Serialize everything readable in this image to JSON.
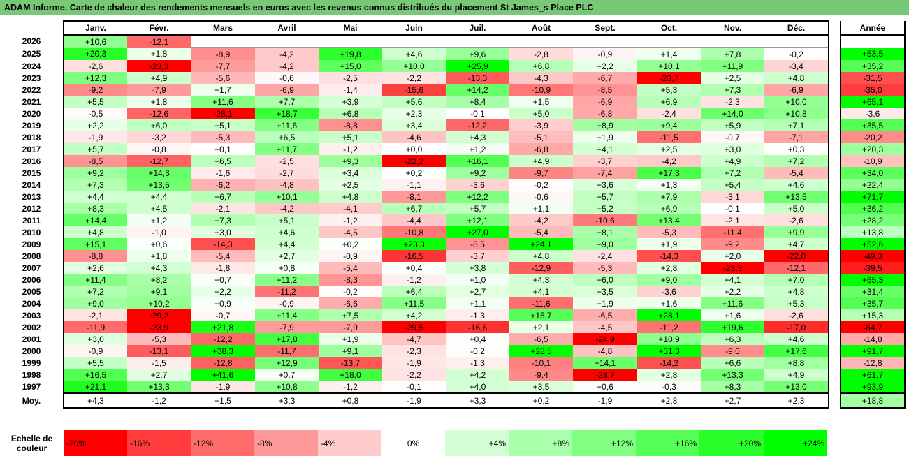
{
  "title": "ADAM Informe. Carte de chaleur des rendements mensuels en euros avec les revenus connus distribués du placement St James_s Place PLC",
  "chart_data": {
    "type": "heatmap",
    "columns": [
      "Janv.",
      "Févr.",
      "Mars",
      "Avril",
      "Mai",
      "Juin",
      "Juil.",
      "Août",
      "Sept.",
      "Oct.",
      "Nov.",
      "Déc."
    ],
    "annual_header": "Année",
    "rows": [
      {
        "year": "2026",
        "values": [
          "+10,6",
          "-12,1",
          "",
          "",
          "",
          "",
          "",
          "",
          "",
          "",
          "",
          ""
        ],
        "annual": ""
      },
      {
        "year": "2025",
        "values": [
          "+20,3",
          "+1,8",
          "-8,9",
          "-4,2",
          "+19,8",
          "+4,6",
          "+9,6",
          "-2,8",
          "-0,9",
          "+1,4",
          "+7,8",
          "-0,2"
        ],
        "annual": "+53,5"
      },
      {
        "year": "2024",
        "values": [
          "-2,6",
          "-23,3",
          "-7,7",
          "-4,2",
          "+15,0",
          "+10,0",
          "+25,9",
          "+6,8",
          "+2,2",
          "+10,1",
          "+11,9",
          "-3,4"
        ],
        "annual": "+35,2"
      },
      {
        "year": "2023",
        "values": [
          "+12,3",
          "+4,9",
          "-5,6",
          "-0,6",
          "-2,5",
          "-2,2",
          "-13,3",
          "-4,3",
          "-6,7",
          "-23,7",
          "+2,5",
          "+4,8"
        ],
        "annual": "-31,5"
      },
      {
        "year": "2022",
        "values": [
          "-9,2",
          "-7,9",
          "+1,7",
          "-6,9",
          "-1,4",
          "-15,6",
          "+14,2",
          "-10,9",
          "-8,5",
          "+5,3",
          "+7,3",
          "-6,9"
        ],
        "annual": "-35,0"
      },
      {
        "year": "2021",
        "values": [
          "+5,5",
          "+1,8",
          "+11,6",
          "+7,7",
          "+3,9",
          "+5,6",
          "+8,4",
          "+1,5",
          "-6,9",
          "+6,9",
          "-2,3",
          "+10,0"
        ],
        "annual": "+65,1"
      },
      {
        "year": "2020",
        "values": [
          "-0,5",
          "-12,6",
          "-28,1",
          "+18,7",
          "+6,8",
          "+2,3",
          "-0,1",
          "+5,0",
          "-6,8",
          "-2,4",
          "+14,0",
          "+10,8"
        ],
        "annual": "-3,6"
      },
      {
        "year": "2019",
        "values": [
          "+2,2",
          "+6,0",
          "+5,1",
          "+11,6",
          "-8,8",
          "+3,4",
          "-12,2",
          "-3,9",
          "+8,9",
          "+9,4",
          "+5,9",
          "+7,1"
        ],
        "annual": "+35,5"
      },
      {
        "year": "2018",
        "values": [
          "-1,9",
          "-3,2",
          "-5,3",
          "+6,5",
          "+5,1",
          "-4,6",
          "+4,3",
          "-5,1",
          "+1,9",
          "-11,5",
          "-0,7",
          "-7,1"
        ],
        "annual": "-20,2"
      },
      {
        "year": "2017",
        "values": [
          "+5,7",
          "-0,8",
          "+0,1",
          "+11,7",
          "-1,2",
          "+0,0",
          "+1,2",
          "-6,8",
          "+4,1",
          "+2,5",
          "+3,0",
          "+0,3"
        ],
        "annual": "+20,3"
      },
      {
        "year": "2016",
        "values": [
          "-8,5",
          "-12,7",
          "+6,5",
          "-2,5",
          "+9,3",
          "-22,2",
          "+16,1",
          "+4,9",
          "-3,7",
          "-4,2",
          "+4,9",
          "+7,2"
        ],
        "annual": "-10,9"
      },
      {
        "year": "2015",
        "values": [
          "+9,2",
          "+14,3",
          "-1,6",
          "-2,7",
          "+3,4",
          "+0,2",
          "+9,2",
          "-9,7",
          "-7,4",
          "+17,3",
          "+7,2",
          "-5,4"
        ],
        "annual": "+34,0"
      },
      {
        "year": "2014",
        "values": [
          "+7,3",
          "+13,5",
          "-6,2",
          "-4,8",
          "+2,5",
          "-1,1",
          "-3,6",
          "-0,2",
          "+3,6",
          "+1,3",
          "+5,4",
          "+4,6"
        ],
        "annual": "+22,4"
      },
      {
        "year": "2013",
        "values": [
          "+4,4",
          "+4,4",
          "+6,7",
          "+10,1",
          "+4,8",
          "-8,1",
          "+12,2",
          "-0,6",
          "+5,7",
          "+7,9",
          "-3,1",
          "+13,5"
        ],
        "annual": "+71,7"
      },
      {
        "year": "2012",
        "values": [
          "+8,3",
          "+4,5",
          "-2,1",
          "-4,2",
          "-4,1",
          "+6,7",
          "+5,7",
          "+1,1",
          "+5,2",
          "+6,9",
          "-0,1",
          "+5,0"
        ],
        "annual": "+36,2"
      },
      {
        "year": "2011",
        "values": [
          "+14,4",
          "+1,2",
          "+7,3",
          "+5,1",
          "-1,2",
          "-4,4",
          "+12,1",
          "-4,2",
          "-10,6",
          "+13,4",
          "-2,1",
          "-2,6"
        ],
        "annual": "+28,2"
      },
      {
        "year": "2010",
        "values": [
          "+4,8",
          "-1,0",
          "+3,0",
          "+4,6",
          "-4,5",
          "-10,8",
          "+27,0",
          "-5,4",
          "+8,1",
          "-5,3",
          "-11,4",
          "+9,9"
        ],
        "annual": "+13,8"
      },
      {
        "year": "2009",
        "values": [
          "+15,1",
          "+0,6",
          "-14,3",
          "+4,4",
          "+0,2",
          "+23,3",
          "-8,5",
          "+24,1",
          "+9,0",
          "+1,9",
          "-9,2",
          "+4,7"
        ],
        "annual": "+52,6"
      },
      {
        "year": "2008",
        "values": [
          "-8,8",
          "+1,8",
          "-5,4",
          "+2,7",
          "-0,9",
          "-16,5",
          "-3,7",
          "+4,8",
          "-2,4",
          "-14,3",
          "+2,0",
          "-22,0"
        ],
        "annual": "-49,3"
      },
      {
        "year": "2007",
        "values": [
          "+2,6",
          "+4,3",
          "-1,8",
          "+0,8",
          "-5,4",
          "+0,4",
          "+3,8",
          "-12,9",
          "-5,3",
          "+2,8",
          "-23,3",
          "-12,1"
        ],
        "annual": "-39,5"
      },
      {
        "year": "2006",
        "values": [
          "+11,4",
          "+8,2",
          "+0,7",
          "+11,2",
          "-8,3",
          "-1,2",
          "+1,0",
          "+4,3",
          "+6,0",
          "+9,0",
          "+4,1",
          "+7,0"
        ],
        "annual": "+65,3"
      },
      {
        "year": "2005",
        "values": [
          "+7,2",
          "+9,1",
          "+2,2",
          "-11,2",
          "-0,2",
          "+6,4",
          "+2,7",
          "+4,1",
          "+3,5",
          "-3,6",
          "+2,2",
          "+4,8"
        ],
        "annual": "+31,4"
      },
      {
        "year": "2004",
        "values": [
          "+9,0",
          "+10,2",
          "+0,9",
          "-0,9",
          "-6,6",
          "+11,5",
          "+1,1",
          "-11,6",
          "+1,9",
          "+1,6",
          "+11,6",
          "+5,3"
        ],
        "annual": "+35,7"
      },
      {
        "year": "2003",
        "values": [
          "-2,1",
          "-29,2",
          "-0,7",
          "+11,4",
          "+7,5",
          "+4,2",
          "-1,3",
          "+15,7",
          "-6,5",
          "+28,1",
          "+1,6",
          "-2,6"
        ],
        "annual": "+15,3"
      },
      {
        "year": "2002",
        "values": [
          "-11,9",
          "-23,9",
          "+21,8",
          "-7,9",
          "-7,9",
          "-29,5",
          "-16,6",
          "+2,1",
          "-4,5",
          "-11,2",
          "+19,6",
          "-17,0"
        ],
        "annual": "-64,7"
      },
      {
        "year": "2001",
        "values": [
          "+3,0",
          "-5,3",
          "-12,2",
          "+17,8",
          "+1,9",
          "-4,7",
          "+0,4",
          "-6,5",
          "-24,9",
          "+10,9",
          "+6,3",
          "+4,6"
        ],
        "annual": "-14,8"
      },
      {
        "year": "2000",
        "values": [
          "-0,9",
          "-13,1",
          "+38,3",
          "-11,7",
          "+9,1",
          "-2,3",
          "-0,2",
          "+28,5",
          "-4,8",
          "+31,3",
          "-9,0",
          "+17,6"
        ],
        "annual": "+91,7"
      },
      {
        "year": "1999",
        "values": [
          "+5,5",
          "-1,5",
          "-12,8",
          "+12,9",
          "-13,7",
          "-1,9",
          "-1,3",
          "-10,1",
          "+14,1",
          "-14,2",
          "+6,6",
          "+8,8"
        ],
        "annual": "-12,8"
      },
      {
        "year": "1998",
        "values": [
          "+16,5",
          "+2,7",
          "+41,6",
          "+0,7",
          "+18,0",
          "-2,2",
          "+4,2",
          "-9,4",
          "-28,7",
          "+2,8",
          "+13,3",
          "+4,9"
        ],
        "annual": "+61,7"
      },
      {
        "year": "1997",
        "values": [
          "+21,1",
          "+13,3",
          "-1,9",
          "+10,8",
          "-1,2",
          "-0,1",
          "+4,0",
          "+3,5",
          "+0,6",
          "-0,3",
          "+8,3",
          "+13,0"
        ],
        "annual": "+93,9"
      }
    ],
    "average": {
      "label": "Moy.",
      "values": [
        "+4,3",
        "-1,2",
        "+1,5",
        "+3,3",
        "+0,8",
        "-1,9",
        "+3,3",
        "+0,2",
        "-1,9",
        "+2,8",
        "+2,7",
        "+2,3"
      ],
      "annual": "+18,8"
    },
    "color_scale": {
      "label": "Echelle de couleur",
      "stops": [
        {
          "text": "-20%",
          "value": -20,
          "color": "#ff0000"
        },
        {
          "text": "-16%",
          "value": -16,
          "color": "#ff3b3b"
        },
        {
          "text": "-12%",
          "value": -12,
          "color": "#ff6a6a"
        },
        {
          "text": "-8%",
          "value": -8,
          "color": "#ff9999"
        },
        {
          "text": "-4%",
          "value": -4,
          "color": "#ffcccc"
        },
        {
          "text": "0%",
          "value": 0,
          "color": "#ffffff"
        },
        {
          "text": "+4%",
          "value": 4,
          "color": "#d4ffd4"
        },
        {
          "text": "+8%",
          "value": 8,
          "color": "#aaffaa"
        },
        {
          "text": "+12%",
          "value": 12,
          "color": "#80ff80"
        },
        {
          "text": "+16%",
          "value": 16,
          "color": "#55ff55"
        },
        {
          "text": "+20%",
          "value": 20,
          "color": "#2bff2b"
        },
        {
          "text": "+24%",
          "value": 24,
          "color": "#00ff00"
        }
      ]
    }
  }
}
